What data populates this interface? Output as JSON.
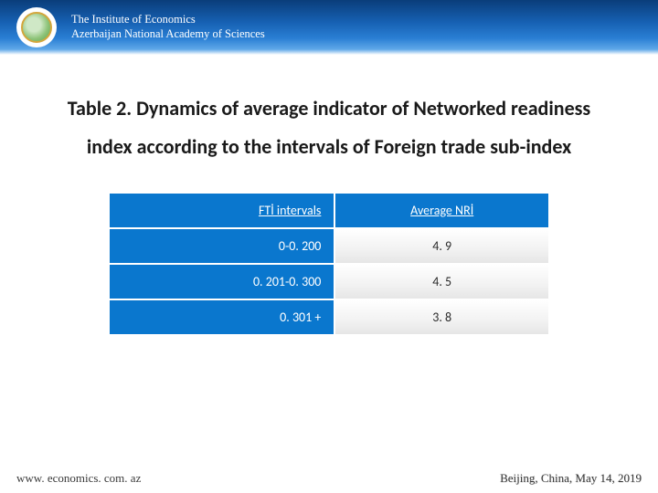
{
  "header": {
    "org_line1": "The Institute of Economics",
    "org_line2": "Azerbaijan National Academy of Sciences"
  },
  "title": {
    "line1": "Table 2. Dynamics of average indicator of Networked readiness",
    "line2": "index according to the intervals of Foreign trade sub-index"
  },
  "table": {
    "columns": [
      "FTİ intervals",
      "Average NRİ"
    ],
    "rows": [
      [
        "0-0. 200",
        "4. 9"
      ],
      [
        "0. 201-0. 300",
        "4. 5"
      ],
      [
        "0. 301 +",
        "3. 8"
      ]
    ],
    "header_bg": "#0a77ce",
    "header_color": "#ffffff",
    "cell_left_bg": "#0a77ce",
    "cell_left_color": "#ffffff",
    "cell_right_color": "#2a2a2a",
    "border_color": "#ffffff",
    "col_align": [
      "right",
      "center"
    ],
    "font_size": 14
  },
  "footer": {
    "left": "www. economics. com. az",
    "right": "Beijing, China, May 14, 2019"
  }
}
